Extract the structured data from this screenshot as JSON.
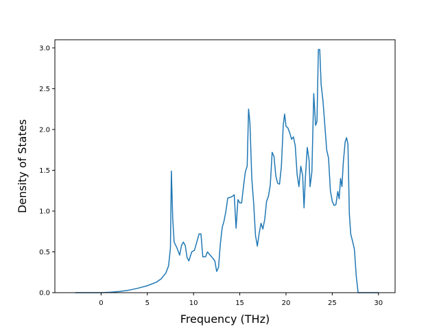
{
  "chart_data": {
    "type": "line",
    "title": "",
    "xlabel": "Frequency (THz)",
    "ylabel": "Density of States",
    "xlim": [
      -5.0,
      31.8
    ],
    "ylim": [
      0.0,
      3.1
    ],
    "xticks": [
      0,
      5,
      10,
      15,
      20,
      25,
      30
    ],
    "yticks": [
      0.0,
      0.5,
      1.0,
      1.5,
      2.0,
      2.5,
      3.0
    ],
    "xtick_labels": [
      "0",
      "5",
      "10",
      "15",
      "20",
      "25",
      "30"
    ],
    "ytick_labels": [
      "0.0",
      "0.5",
      "1.0",
      "1.5",
      "2.0",
      "2.5",
      "3.0"
    ],
    "grid": false,
    "legend": "none",
    "colors": {
      "line": "#1f77b4",
      "axes": "#000000",
      "background": "#ffffff"
    },
    "series": [
      {
        "points": [
          [
            -2.8,
            0.0
          ],
          [
            0.0,
            0.0
          ],
          [
            1.0,
            0.005
          ],
          [
            2.0,
            0.015
          ],
          [
            3.0,
            0.03
          ],
          [
            4.0,
            0.055
          ],
          [
            5.0,
            0.085
          ],
          [
            6.0,
            0.13
          ],
          [
            6.5,
            0.17
          ],
          [
            7.0,
            0.24
          ],
          [
            7.3,
            0.33
          ],
          [
            7.5,
            0.55
          ],
          [
            7.6,
            1.49
          ],
          [
            7.75,
            0.9
          ],
          [
            7.9,
            0.62
          ],
          [
            8.2,
            0.55
          ],
          [
            8.5,
            0.46
          ],
          [
            8.7,
            0.58
          ],
          [
            8.9,
            0.62
          ],
          [
            9.1,
            0.58
          ],
          [
            9.3,
            0.43
          ],
          [
            9.5,
            0.39
          ],
          [
            9.8,
            0.5
          ],
          [
            10.1,
            0.52
          ],
          [
            10.4,
            0.64
          ],
          [
            10.6,
            0.72
          ],
          [
            10.8,
            0.72
          ],
          [
            11.0,
            0.44
          ],
          [
            11.3,
            0.44
          ],
          [
            11.5,
            0.5
          ],
          [
            11.8,
            0.46
          ],
          [
            12.1,
            0.42
          ],
          [
            12.3,
            0.39
          ],
          [
            12.5,
            0.26
          ],
          [
            12.7,
            0.31
          ],
          [
            12.9,
            0.6
          ],
          [
            13.1,
            0.8
          ],
          [
            13.3,
            0.88
          ],
          [
            13.5,
            1.0
          ],
          [
            13.7,
            1.16
          ],
          [
            14.0,
            1.17
          ],
          [
            14.2,
            1.18
          ],
          [
            14.4,
            1.2
          ],
          [
            14.6,
            0.79
          ],
          [
            14.8,
            1.14
          ],
          [
            15.0,
            1.1
          ],
          [
            15.2,
            1.1
          ],
          [
            15.4,
            1.3
          ],
          [
            15.6,
            1.48
          ],
          [
            15.8,
            1.55
          ],
          [
            15.95,
            2.25
          ],
          [
            16.1,
            2.08
          ],
          [
            16.3,
            1.4
          ],
          [
            16.5,
            1.1
          ],
          [
            16.7,
            0.7
          ],
          [
            16.9,
            0.57
          ],
          [
            17.1,
            0.73
          ],
          [
            17.3,
            0.85
          ],
          [
            17.5,
            0.78
          ],
          [
            17.7,
            0.9
          ],
          [
            17.9,
            1.12
          ],
          [
            18.1,
            1.18
          ],
          [
            18.3,
            1.32
          ],
          [
            18.5,
            1.72
          ],
          [
            18.7,
            1.67
          ],
          [
            18.9,
            1.43
          ],
          [
            19.1,
            1.34
          ],
          [
            19.3,
            1.33
          ],
          [
            19.5,
            1.55
          ],
          [
            19.7,
            2.05
          ],
          [
            19.85,
            2.19
          ],
          [
            20.0,
            2.04
          ],
          [
            20.2,
            2.02
          ],
          [
            20.4,
            1.96
          ],
          [
            20.6,
            1.88
          ],
          [
            20.8,
            1.91
          ],
          [
            21.0,
            1.8
          ],
          [
            21.2,
            1.45
          ],
          [
            21.4,
            1.3
          ],
          [
            21.6,
            1.55
          ],
          [
            21.8,
            1.44
          ],
          [
            21.95,
            1.04
          ],
          [
            22.1,
            1.42
          ],
          [
            22.3,
            1.78
          ],
          [
            22.5,
            1.62
          ],
          [
            22.6,
            1.3
          ],
          [
            22.8,
            1.48
          ],
          [
            23.0,
            2.44
          ],
          [
            23.2,
            2.05
          ],
          [
            23.35,
            2.1
          ],
          [
            23.5,
            2.98
          ],
          [
            23.65,
            2.98
          ],
          [
            23.8,
            2.55
          ],
          [
            24.0,
            2.35
          ],
          [
            24.2,
            2.05
          ],
          [
            24.4,
            1.75
          ],
          [
            24.6,
            1.65
          ],
          [
            24.8,
            1.25
          ],
          [
            25.0,
            1.12
          ],
          [
            25.2,
            1.07
          ],
          [
            25.4,
            1.08
          ],
          [
            25.6,
            1.24
          ],
          [
            25.75,
            1.15
          ],
          [
            25.9,
            1.4
          ],
          [
            26.05,
            1.3
          ],
          [
            26.2,
            1.6
          ],
          [
            26.4,
            1.85
          ],
          [
            26.55,
            1.9
          ],
          [
            26.7,
            1.82
          ],
          [
            26.85,
            0.97
          ],
          [
            27.0,
            0.72
          ],
          [
            27.2,
            0.63
          ],
          [
            27.4,
            0.53
          ],
          [
            27.6,
            0.2
          ],
          [
            27.8,
            0.0
          ],
          [
            30.0,
            0.0
          ]
        ]
      }
    ]
  }
}
